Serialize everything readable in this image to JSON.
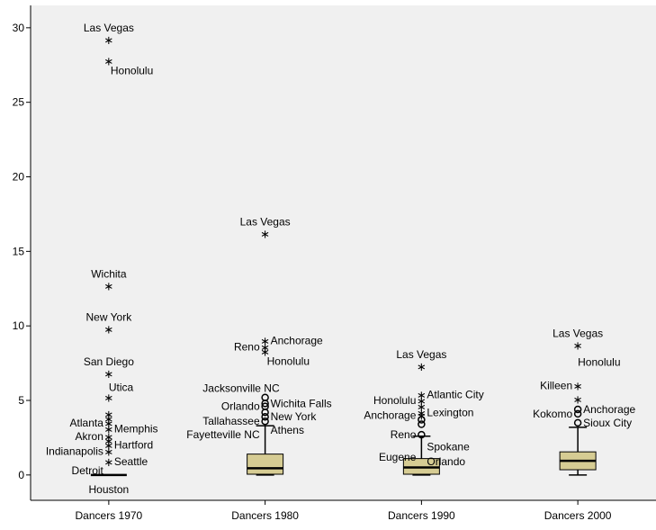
{
  "chart_data": {
    "type": "boxplot",
    "title": "",
    "xlabel": "",
    "ylabel": "",
    "ylim": [
      -1.7,
      31.5
    ],
    "yticks": [
      0,
      5,
      10,
      15,
      20,
      25,
      30
    ],
    "grid": false,
    "legend": "none",
    "colors": {
      "box_fill": "#d6cc93",
      "plot_bg": "#f0f0f0",
      "axis": "#000000"
    },
    "categories": [
      "Dancers 1970",
      "Dancers 1980",
      "Dancers 1990",
      "Dancers 2000"
    ],
    "boxes": [
      {
        "q1": 0,
        "median": 0,
        "q3": 0,
        "whisker_low": 0,
        "whisker_high": 0
      },
      {
        "q1": 0.05,
        "median": 0.45,
        "q3": 1.4,
        "whisker_low": 0,
        "whisker_high": 3.3
      },
      {
        "q1": 0.05,
        "median": 0.5,
        "q3": 1.1,
        "whisker_low": 0,
        "whisker_high": 2.6
      },
      {
        "q1": 0.35,
        "median": 0.95,
        "q3": 1.55,
        "whisker_low": 0,
        "whisker_high": 3.2
      }
    ],
    "points": [
      {
        "box": 0,
        "kind": "extreme",
        "value": 29.2,
        "label": "Las Vegas",
        "label_pos": "above"
      },
      {
        "box": 0,
        "kind": "extreme",
        "value": 27.8,
        "label": "Honolulu",
        "label_pos": "below-right"
      },
      {
        "box": 0,
        "kind": "extreme",
        "value": 12.7,
        "label": "Wichita",
        "label_pos": "above"
      },
      {
        "box": 0,
        "kind": "extreme",
        "value": 9.8,
        "label": "New York",
        "label_pos": "above"
      },
      {
        "box": 0,
        "kind": "extreme",
        "value": 6.8,
        "label": "San Diego",
        "label_pos": "above"
      },
      {
        "box": 0,
        "kind": "extreme",
        "value": 5.2,
        "label": "Utica",
        "label_pos": "above-right"
      },
      {
        "box": 0,
        "kind": "extreme",
        "value": 4.1,
        "label": "",
        "label_pos": ""
      },
      {
        "box": 0,
        "kind": "extreme",
        "value": 3.8,
        "label": "",
        "label_pos": ""
      },
      {
        "box": 0,
        "kind": "extreme",
        "value": 3.5,
        "label": "Atlanta",
        "label_pos": "left"
      },
      {
        "box": 0,
        "kind": "extreme",
        "value": 3.1,
        "label": "Memphis",
        "label_pos": "right"
      },
      {
        "box": 0,
        "kind": "extreme",
        "value": 2.6,
        "label": "Akron",
        "label_pos": "left"
      },
      {
        "box": 0,
        "kind": "extreme",
        "value": 2.3,
        "label": "",
        "label_pos": ""
      },
      {
        "box": 0,
        "kind": "extreme",
        "value": 2.0,
        "label": "Hartford",
        "label_pos": "right"
      },
      {
        "box": 0,
        "kind": "extreme",
        "value": 1.6,
        "label": "Indianapolis",
        "label_pos": "left"
      },
      {
        "box": 0,
        "kind": "extreme",
        "value": 0.9,
        "label": "Seattle",
        "label_pos": "right"
      },
      {
        "box": 0,
        "kind": "none",
        "value": 0.3,
        "label": "Detroit",
        "label_pos": "left"
      },
      {
        "box": 0,
        "kind": "none",
        "value": -0.2,
        "label": "Houston",
        "label_pos": "below"
      },
      {
        "box": 1,
        "kind": "extreme",
        "value": 16.2,
        "label": "Las Vegas",
        "label_pos": "above"
      },
      {
        "box": 1,
        "kind": "extreme",
        "value": 9.0,
        "label": "Anchorage",
        "label_pos": "right"
      },
      {
        "box": 1,
        "kind": "extreme",
        "value": 8.6,
        "label": "Reno",
        "label_pos": "left"
      },
      {
        "box": 1,
        "kind": "extreme",
        "value": 8.3,
        "label": "Honolulu",
        "label_pos": "below-right"
      },
      {
        "box": 1,
        "kind": "outlier",
        "value": 5.2,
        "label": "Jacksonville NC",
        "label_pos": "above-left"
      },
      {
        "box": 1,
        "kind": "outlier",
        "value": 4.8,
        "label": "Wichita Falls",
        "label_pos": "right"
      },
      {
        "box": 1,
        "kind": "outlier",
        "value": 4.6,
        "label": "Orlando",
        "label_pos": "left"
      },
      {
        "box": 1,
        "kind": "outlier",
        "value": 4.2,
        "label": "",
        "label_pos": ""
      },
      {
        "box": 1,
        "kind": "outlier",
        "value": 3.9,
        "label": "New York",
        "label_pos": "right"
      },
      {
        "box": 1,
        "kind": "outlier",
        "value": 3.6,
        "label": "Tallahassee",
        "label_pos": "left"
      },
      {
        "box": 1,
        "kind": "none",
        "value": 3.0,
        "label": "Athens",
        "label_pos": "right"
      },
      {
        "box": 1,
        "kind": "none",
        "value": 2.7,
        "label": "Fayetteville NC",
        "label_pos": "left"
      },
      {
        "box": 2,
        "kind": "extreme",
        "value": 7.3,
        "label": "Las Vegas",
        "label_pos": "above"
      },
      {
        "box": 2,
        "kind": "extreme",
        "value": 5.4,
        "label": "Atlantic City",
        "label_pos": "right"
      },
      {
        "box": 2,
        "kind": "extreme",
        "value": 5.0,
        "label": "Honolulu",
        "label_pos": "left"
      },
      {
        "box": 2,
        "kind": "extreme",
        "value": 4.6,
        "label": "",
        "label_pos": ""
      },
      {
        "box": 2,
        "kind": "extreme",
        "value": 4.2,
        "label": "Lexington",
        "label_pos": "right"
      },
      {
        "box": 2,
        "kind": "extreme",
        "value": 4.0,
        "label": "Anchorage",
        "label_pos": "left"
      },
      {
        "box": 2,
        "kind": "outlier",
        "value": 3.7,
        "label": "",
        "label_pos": ""
      },
      {
        "box": 2,
        "kind": "outlier",
        "value": 3.4,
        "label": "",
        "label_pos": ""
      },
      {
        "box": 2,
        "kind": "outlier",
        "value": 2.7,
        "label": "Reno",
        "label_pos": "left"
      },
      {
        "box": 2,
        "kind": "none",
        "value": 1.9,
        "label": "Spokane",
        "label_pos": "right"
      },
      {
        "box": 2,
        "kind": "none",
        "value": 1.2,
        "label": "Eugene",
        "label_pos": "left"
      },
      {
        "box": 2,
        "kind": "none",
        "value": 0.9,
        "label": "Orlando",
        "label_pos": "right"
      },
      {
        "box": 3,
        "kind": "extreme",
        "value": 8.7,
        "label": "Las Vegas",
        "label_pos": "above"
      },
      {
        "box": 3,
        "kind": "none",
        "value": 6.9,
        "label": "Honolulu",
        "label_pos": "above-right"
      },
      {
        "box": 3,
        "kind": "extreme",
        "value": 6.0,
        "label": "Killeen",
        "label_pos": "left"
      },
      {
        "box": 3,
        "kind": "extreme",
        "value": 5.1,
        "label": "",
        "label_pos": ""
      },
      {
        "box": 3,
        "kind": "outlier",
        "value": 4.4,
        "label": "Anchorage",
        "label_pos": "right"
      },
      {
        "box": 3,
        "kind": "outlier",
        "value": 4.1,
        "label": "Kokomo",
        "label_pos": "left"
      },
      {
        "box": 3,
        "kind": "outlier",
        "value": 3.5,
        "label": "Sioux City",
        "label_pos": "right"
      }
    ]
  }
}
